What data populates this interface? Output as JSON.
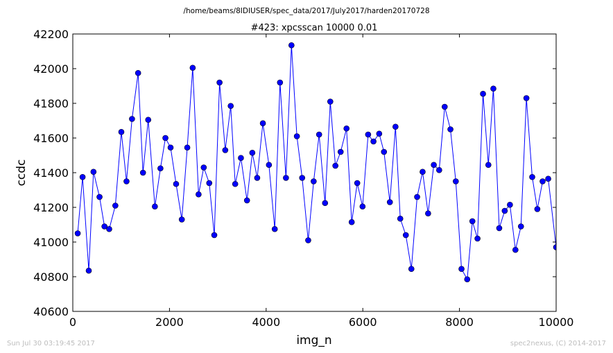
{
  "header": {
    "path": "/home/beams/8IDIUSER/spec_data/2017/July2017/harden20170728"
  },
  "footer": {
    "left": "Sun Jul 30 03:19:45 2017",
    "right": "spec2nexus, (C) 2014-2017"
  },
  "chart_data": {
    "type": "line",
    "title": "#423: xpcsscan 10000 0.01",
    "xlabel": "img_n",
    "ylabel": "ccdc",
    "xlim": [
      0,
      10000
    ],
    "ylim": [
      40600,
      42200
    ],
    "grid": false,
    "x_ticks": [
      0,
      2000,
      4000,
      6000,
      8000,
      10000
    ],
    "x_tick_labels": [
      "0",
      "2000",
      "4000",
      "6000",
      "8000",
      "10000"
    ],
    "y_ticks": [
      40600,
      40800,
      41000,
      41200,
      41400,
      41600,
      41800,
      42000,
      42200
    ],
    "y_tick_labels": [
      "40600",
      "40800",
      "41000",
      "41200",
      "41400",
      "41600",
      "41800",
      "42000",
      "42200"
    ],
    "series": [
      {
        "color": "#0000ff",
        "marker": "circle",
        "x": [
          101,
          202,
          330,
          428,
          553,
          655,
          753,
          880,
          1004,
          1111,
          1225,
          1351,
          1452,
          1560,
          1698,
          1813,
          1916,
          2023,
          2137,
          2255,
          2368,
          2480,
          2602,
          2709,
          2823,
          2927,
          3036,
          3154,
          3267,
          3360,
          3478,
          3604,
          3714,
          3815,
          3932,
          4058,
          4178,
          4287,
          4410,
          4524,
          4636,
          4745,
          4870,
          4983,
          5096,
          5219,
          5327,
          5433,
          5541,
          5663,
          5770,
          5885,
          5995,
          6110,
          6221,
          6339,
          6438,
          6560,
          6676,
          6775,
          6890,
          7005,
          7124,
          7237,
          7351,
          7469,
          7580,
          7694,
          7813,
          7924,
          8042,
          8160,
          8267,
          8373,
          8487,
          8598,
          8701,
          8823,
          8936,
          9044,
          9158,
          9272,
          9385,
          9505,
          9611,
          9720,
          9836,
          10000
        ],
        "y": [
          41050,
          41375,
          40835,
          41405,
          41260,
          41090,
          41075,
          41210,
          41635,
          41350,
          41710,
          41975,
          41400,
          41705,
          41205,
          41425,
          41600,
          41545,
          41335,
          41130,
          41545,
          42005,
          41275,
          41430,
          41340,
          41040,
          41920,
          41530,
          41785,
          41335,
          41485,
          41240,
          41515,
          41370,
          41685,
          41445,
          41075,
          41920,
          41370,
          42135,
          41610,
          41370,
          41010,
          41350,
          41620,
          41225,
          41810,
          41440,
          41520,
          41655,
          41115,
          41340,
          41205,
          41620,
          41580,
          41625,
          41520,
          41230,
          41665,
          41135,
          41040,
          40845,
          41260,
          41405,
          41165,
          41445,
          41415,
          41780,
          41650,
          41350,
          40845,
          40785,
          41120,
          41020,
          41855,
          41445,
          41885,
          41080,
          41180,
          41215,
          40955,
          41090,
          41830,
          41375,
          41190,
          41350,
          41365,
          40970
        ]
      }
    ]
  }
}
